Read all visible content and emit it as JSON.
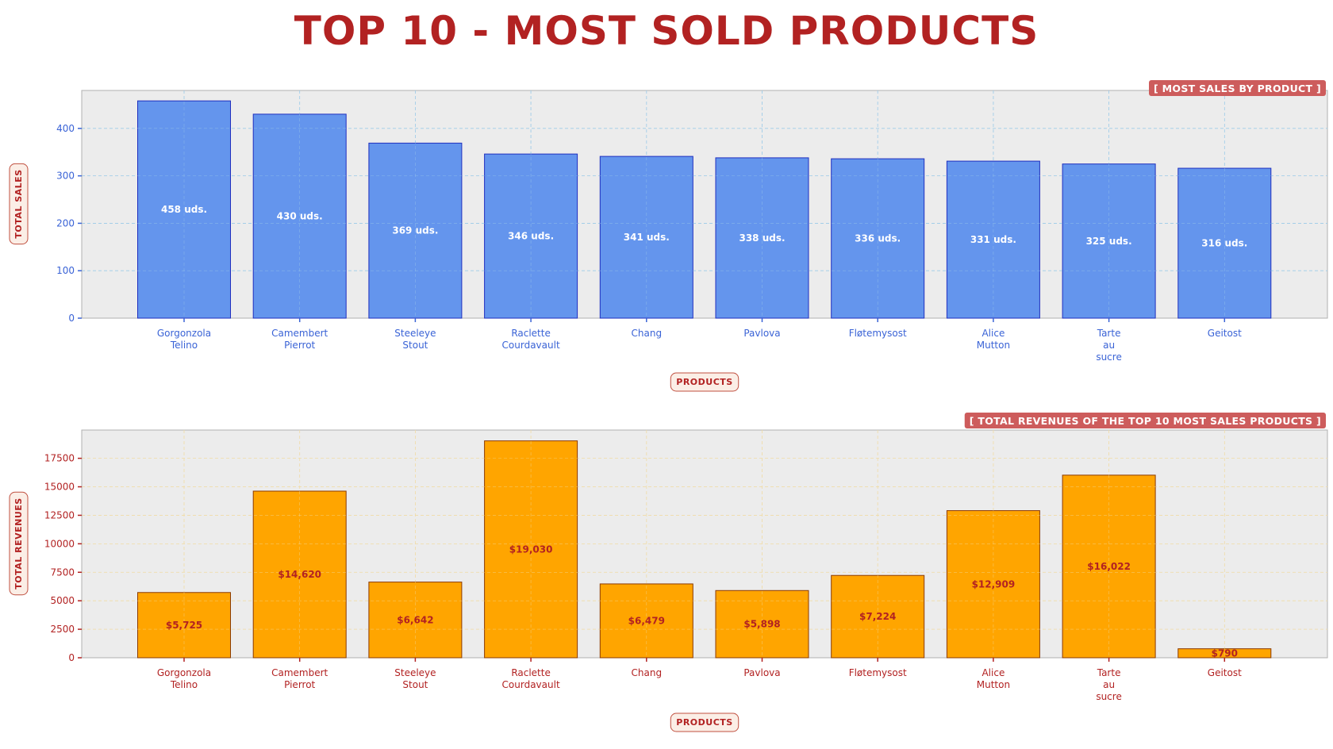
{
  "title": "TOP 10 - MOST SOLD PRODUCTS",
  "colors": {
    "title": "#b22222",
    "plot_bg": "#ececec",
    "sales_bar": "#6495ed",
    "sales_edge": "#1f2fbf",
    "sales_tick": "#3a63d6",
    "sales_grid": "#9ecbe8",
    "revenue_bar": "#ffa500",
    "revenue_edge": "#8b3a00",
    "revenue_tick": "#b22222",
    "revenue_grid": "#f0dca8",
    "tag_bg": "#cd5c5c",
    "label_box_bg": "#fbeee6",
    "label_box_edge": "#c05040"
  },
  "chart_data": [
    {
      "type": "bar",
      "title": "[ MOST SALES BY PRODUCT ]",
      "xlabel": "PRODUCTS",
      "ylabel": "TOTAL SALES",
      "categories": [
        "Gorgonzola\nTelino",
        "Camembert\nPierrot",
        "Steeleye\nStout",
        "Raclette\nCourdavault",
        "Chang",
        "Pavlova",
        "Fløtemysost",
        "Alice\nMutton",
        "Tarte\nau\nsucre",
        "Geitost"
      ],
      "values": [
        458,
        430,
        369,
        346,
        341,
        338,
        336,
        331,
        325,
        316
      ],
      "data_labels": [
        "458 uds.",
        "430 uds.",
        "369 uds.",
        "346 uds.",
        "341 uds.",
        "338 uds.",
        "336 uds.",
        "331 uds.",
        "325 uds.",
        "316 uds."
      ],
      "ylim": [
        0,
        480
      ],
      "yticks": [
        0,
        100,
        200,
        300,
        400
      ],
      "grid": true,
      "title_position": "top-right"
    },
    {
      "type": "bar",
      "title": "[ TOTAL REVENUES OF THE TOP 10 MOST SALES PRODUCTS ]",
      "xlabel": "PRODUCTS",
      "ylabel": "TOTAL REVENUES",
      "categories": [
        "Gorgonzola\nTelino",
        "Camembert\nPierrot",
        "Steeleye\nStout",
        "Raclette\nCourdavault",
        "Chang",
        "Pavlova",
        "Fløtemysost",
        "Alice\nMutton",
        "Tarte\nau\nsucre",
        "Geitost"
      ],
      "values": [
        5725,
        14620,
        6642,
        19030,
        6479,
        5898,
        7224,
        12909,
        16022,
        790
      ],
      "data_labels": [
        "$5,725",
        "$14,620",
        "$6,642",
        "$19,030",
        "$6,479",
        "$5,898",
        "$7,224",
        "$12,909",
        "$16,022",
        "$790"
      ],
      "ylim": [
        0,
        19980
      ],
      "yticks": [
        0,
        2500,
        5000,
        7500,
        10000,
        12500,
        15000,
        17500
      ],
      "grid": true,
      "title_position": "top-right"
    }
  ]
}
